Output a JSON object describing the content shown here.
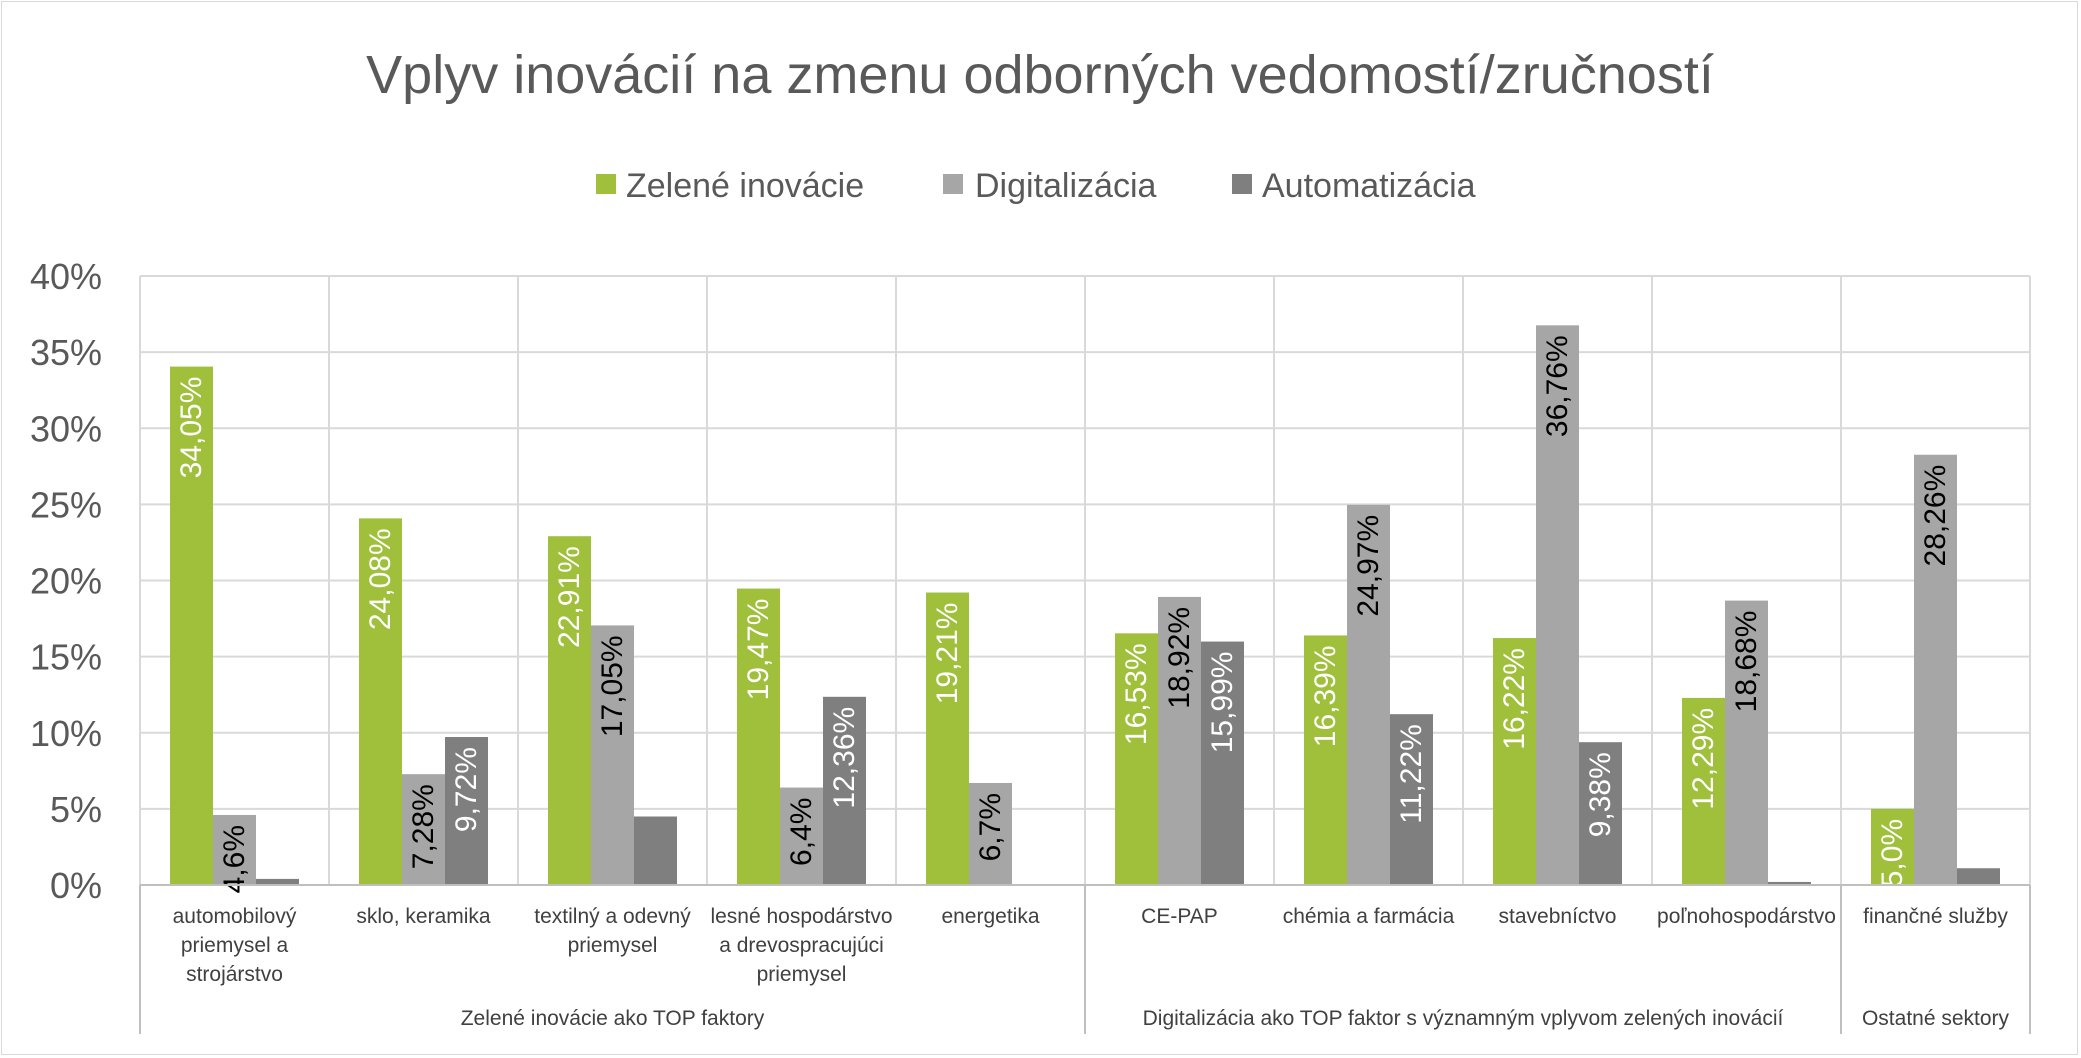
{
  "chart_data": {
    "type": "bar",
    "title": "Vplyv inovácií na zmenu odborných vedomostí/zručností",
    "xlabel": "",
    "ylabel": "",
    "ylim": [
      0,
      0.4
    ],
    "ytick_labels": [
      "0%",
      "5%",
      "10%",
      "15%",
      "20%",
      "25%",
      "30%",
      "35%",
      "40%"
    ],
    "grid": true,
    "legend_position": "top",
    "categories": [
      [
        "automobilový",
        "priemysel a",
        "strojárstvo"
      ],
      [
        "sklo, keramika"
      ],
      [
        "textilný a odevný",
        "priemysel"
      ],
      [
        "lesné hospodárstvo",
        "a drevospracujúci",
        "priemysel"
      ],
      [
        "energetika"
      ],
      [
        "CE-PAP"
      ],
      [
        "chémia a farmácia"
      ],
      [
        "stavebníctvo"
      ],
      [
        "poľnohospodárstvo"
      ],
      [
        "finančné služby"
      ]
    ],
    "groups": [
      {
        "label": "Zelené inovácie ako TOP faktory",
        "start": 0,
        "end": 4
      },
      {
        "label": "Digitalizácia ako TOP faktor s významným vplyvom zelených inovácií",
        "start": 5,
        "end": 8
      },
      {
        "label": "Ostatné sektory",
        "start": 9,
        "end": 9
      }
    ],
    "series": [
      {
        "name": "Zelené inovácie",
        "color": "#a0bf3b",
        "values": [
          0.3405,
          0.2408,
          0.2291,
          0.1947,
          0.1921,
          0.1653,
          0.1639,
          0.1622,
          0.1229,
          0.05
        ],
        "labels": [
          "34,05%",
          "24,08%",
          "22,91%",
          "19,47%",
          "19,21%",
          "16,53%",
          "16,39%",
          "16,22%",
          "12,29%",
          "5,0%"
        ],
        "label_color": "#ffffff"
      },
      {
        "name": "Digitalizácia",
        "color": "#a6a6a6",
        "values": [
          0.046,
          0.0728,
          0.1705,
          0.064,
          0.067,
          0.1892,
          0.2497,
          0.3676,
          0.1868,
          0.2826
        ],
        "labels": [
          "4,6%",
          "7,28%",
          "17,05%",
          "6,4%",
          "6,7%",
          "18,92%",
          "24,97%",
          "36,76%",
          "18,68%",
          "28,26%"
        ],
        "label_color": "#000000"
      },
      {
        "name": "Automatizácia",
        "color": "#7f7f7f",
        "values": [
          0.004,
          0.0972,
          0.045,
          0.1236,
          0.0,
          0.1599,
          0.1122,
          0.0938,
          0.002,
          0.011
        ],
        "labels": [
          "",
          "9,72%",
          "",
          "12,36%",
          "",
          "15,99%",
          "11,22%",
          "9,38%",
          "",
          ""
        ],
        "label_color": "#ffffff"
      }
    ]
  }
}
